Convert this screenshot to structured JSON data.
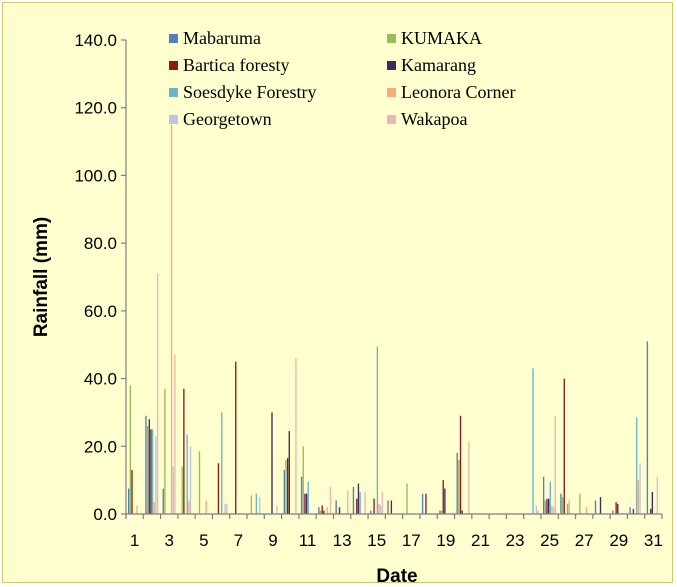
{
  "chart_data": {
    "type": "bar",
    "title": "",
    "xlabel": "Date",
    "ylabel": "Rainfall (mm)",
    "ylim": [
      0,
      140
    ],
    "yticks": [
      "0.0",
      "20.0",
      "40.0",
      "60.0",
      "80.0",
      "100.0",
      "120.0",
      "140.0"
    ],
    "xtick_labels": [
      "1",
      "3",
      "5",
      "7",
      "9",
      "11",
      "13",
      "15",
      "17",
      "19",
      "21",
      "23",
      "25",
      "27",
      "29",
      "31"
    ],
    "categories": [
      1,
      2,
      3,
      4,
      5,
      6,
      7,
      8,
      9,
      10,
      11,
      12,
      13,
      14,
      15,
      16,
      17,
      18,
      19,
      20,
      21,
      22,
      23,
      24,
      25,
      26,
      27,
      28,
      29,
      30,
      31
    ],
    "grid": false,
    "legend_position": "top",
    "series": [
      {
        "name": "Mabaruma",
        "color": "#4f81bd",
        "values": [
          7.5,
          29,
          7.5,
          0,
          0,
          0,
          0,
          0,
          0,
          13,
          11,
          2,
          4,
          8,
          1,
          4,
          0,
          6,
          1,
          18,
          0,
          0,
          0,
          0,
          11,
          6,
          0,
          4,
          1,
          2,
          51
        ]
      },
      {
        "name": "KUMAKA",
        "color": "#9bbb59",
        "values": [
          38,
          26,
          37,
          14,
          18.5,
          0,
          0,
          5.5,
          0,
          16,
          20,
          1,
          0,
          0,
          0,
          0,
          9,
          0,
          1,
          16,
          0,
          0,
          0,
          0,
          4,
          5,
          6,
          0,
          0,
          0,
          0
        ]
      },
      {
        "name": "Bartica foresty",
        "color": "#8c1c1c",
        "values": [
          13,
          28,
          0,
          37,
          0,
          15,
          45,
          0,
          0,
          16.5,
          6,
          2.5,
          2,
          4.5,
          4.5,
          4,
          0,
          6,
          10,
          29,
          0,
          0,
          0,
          0,
          4.5,
          40,
          0,
          0,
          3.5,
          1.5,
          1.5
        ]
      },
      {
        "name": "Kamarang",
        "color": "#3b2a5e",
        "values": [
          0,
          25,
          0,
          0,
          0,
          0,
          0,
          0,
          30,
          24.5,
          6,
          1,
          0,
          9,
          0,
          0,
          0,
          0,
          7.5,
          1,
          0,
          0,
          0,
          0,
          4.5,
          0,
          0,
          5,
          3,
          0,
          6.5
        ]
      },
      {
        "name": "Soesdyke Forestry",
        "color": "#6ab5c8",
        "values": [
          0,
          25,
          0,
          23.5,
          0,
          30,
          0,
          6,
          0,
          0,
          9.5,
          0,
          0,
          6.5,
          49.5,
          0,
          0,
          0,
          0,
          0,
          0,
          0,
          0,
          43,
          9.5,
          3,
          0,
          0,
          0,
          28.5,
          0
        ]
      },
      {
        "name": "Leonora Corner",
        "color": "#f8a97b",
        "values": [
          2.5,
          3.5,
          115,
          4,
          4,
          0,
          0,
          0,
          0,
          0,
          0,
          2,
          0,
          0,
          3,
          0,
          0,
          0,
          0,
          0,
          0,
          0,
          0,
          0,
          2.5,
          4,
          2,
          0,
          0,
          10,
          0
        ]
      },
      {
        "name": "Georgetown",
        "color": "#b9c7e3",
        "values": [
          0,
          23,
          14,
          20,
          0,
          3,
          0,
          5,
          2.5,
          0,
          0,
          0,
          0,
          0,
          2.5,
          0,
          0,
          0,
          0,
          0,
          0,
          0,
          0,
          2.5,
          2,
          0,
          0,
          0,
          0,
          15,
          11
        ]
      },
      {
        "name": "Wakapoa",
        "color": "#e8b7b7",
        "values": [
          0,
          71,
          47,
          0,
          0,
          3,
          0,
          0,
          0,
          46,
          0,
          8,
          7,
          6.5,
          6.5,
          0,
          0,
          0,
          0,
          21.5,
          0,
          0,
          0,
          1,
          29,
          0,
          0,
          0,
          0,
          0,
          0
        ]
      }
    ]
  }
}
